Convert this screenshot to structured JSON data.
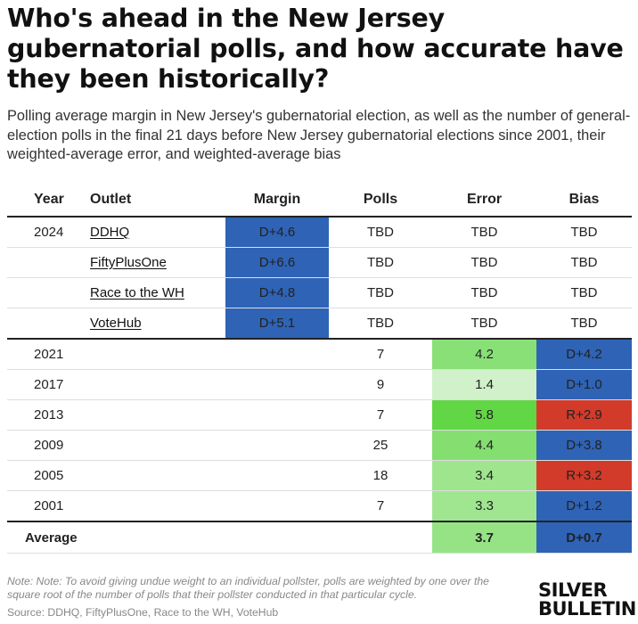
{
  "title": "Who's ahead in the New Jersey gubernatorial polls, and how accurate have they been historically?",
  "subtitle": "Polling average margin in New Jersey's gubernatorial election, as well as the number of general-election polls in the final 21 days before New Jersey gubernatorial elections since 2001, their weighted-average error, and weighted-average bias",
  "note": "Note: Note: To avoid giving undue weight to an individual pollster, polls are weighted by one over the square root of the number of polls that their pollster conducted in that particular cycle.",
  "source": "Source: DDHQ, FiftyPlusOne, Race to the WH, VoteHub",
  "brand": {
    "line1": "SILVER",
    "line2": "BULLETIN"
  },
  "colors": {
    "margin_blue": "#2f63b5",
    "bias_blue": "#2f63b5",
    "bias_red": "#d23a2a"
  },
  "chart_data": {
    "type": "table",
    "columns": [
      "Year",
      "Outlet",
      "Margin",
      "Polls",
      "Error",
      "Bias"
    ],
    "current_year": "2024",
    "current_rows": [
      {
        "outlet": "DDHQ",
        "margin": "D+4.6",
        "polls": "TBD",
        "error": "TBD",
        "bias": "TBD"
      },
      {
        "outlet": "FiftyPlusOne",
        "margin": "D+6.6",
        "polls": "TBD",
        "error": "TBD",
        "bias": "TBD"
      },
      {
        "outlet": "Race to the WH",
        "margin": "D+4.8",
        "polls": "TBD",
        "error": "TBD",
        "bias": "TBD"
      },
      {
        "outlet": "VoteHub",
        "margin": "D+5.1",
        "polls": "TBD",
        "error": "TBD",
        "bias": "TBD"
      }
    ],
    "historical_rows": [
      {
        "year": "2021",
        "polls": "7",
        "error": "4.2",
        "bias": "D+4.2",
        "error_value": 4.2,
        "bias_party": "D"
      },
      {
        "year": "2017",
        "polls": "9",
        "error": "1.4",
        "bias": "D+1.0",
        "error_value": 1.4,
        "bias_party": "D"
      },
      {
        "year": "2013",
        "polls": "7",
        "error": "5.8",
        "bias": "R+2.9",
        "error_value": 5.8,
        "bias_party": "R"
      },
      {
        "year": "2009",
        "polls": "25",
        "error": "4.4",
        "bias": "D+3.8",
        "error_value": 4.4,
        "bias_party": "D"
      },
      {
        "year": "2005",
        "polls": "18",
        "error": "3.4",
        "bias": "R+3.2",
        "error_value": 3.4,
        "bias_party": "R"
      },
      {
        "year": "2001",
        "polls": "7",
        "error": "3.3",
        "bias": "D+1.2",
        "error_value": 3.3,
        "bias_party": "D"
      }
    ],
    "average": {
      "label": "Average",
      "error": "3.7",
      "bias": "D+0.7",
      "error_value": 3.7,
      "bias_party": "D"
    }
  }
}
